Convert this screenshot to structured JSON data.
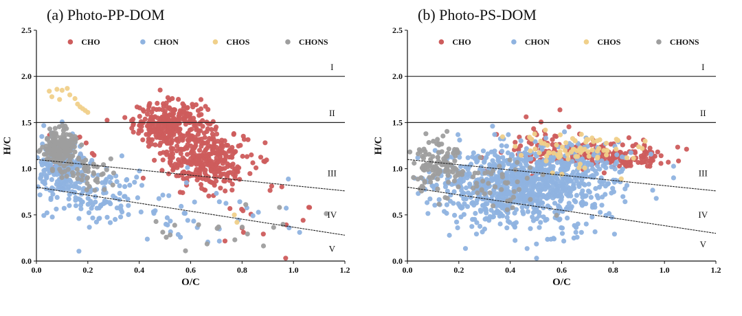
{
  "chart_data": [
    {
      "type": "scatter",
      "title": "(a) Photo-PP-DOM",
      "xlabel": "O/C",
      "ylabel": "H/C",
      "xlim": [
        0,
        1.2
      ],
      "ylim": [
        0,
        2.5
      ],
      "xticks": [
        "0.0",
        "0.2",
        "0.4",
        "0.6",
        "0.8",
        "1.0",
        "1.2"
      ],
      "yticks": [
        "0.0",
        "0.5",
        "1.0",
        "1.5",
        "2.0",
        "2.5"
      ],
      "legend_position": "top",
      "series": [
        {
          "name": "CHO",
          "color": "#cd5c5c",
          "clusters": [
            {
              "cx": 0.52,
              "cy": 1.48,
              "rx": 0.14,
              "ry": 0.25,
              "n": 300
            },
            {
              "cx": 0.66,
              "cy": 1.1,
              "rx": 0.17,
              "ry": 0.32,
              "n": 320
            },
            {
              "cx": 0.14,
              "cy": 1.2,
              "rx": 0.1,
              "ry": 0.22,
              "n": 25
            },
            {
              "cx": 0.9,
              "cy": 0.5,
              "rx": 0.3,
              "ry": 0.45,
              "n": 14
            }
          ]
        },
        {
          "name": "CHON",
          "color": "#8fb3e0",
          "clusters": [
            {
              "cx": 0.1,
              "cy": 1.0,
              "rx": 0.09,
              "ry": 0.32,
              "n": 240
            },
            {
              "cx": 0.25,
              "cy": 0.7,
              "rx": 0.2,
              "ry": 0.3,
              "n": 100
            },
            {
              "cx": 0.6,
              "cy": 0.55,
              "rx": 0.45,
              "ry": 0.45,
              "n": 45
            }
          ]
        },
        {
          "name": "CHOS",
          "color": "#f0d08a",
          "points": [
            [
              0.05,
              1.84
            ],
            [
              0.08,
              1.86
            ],
            [
              0.1,
              1.85
            ],
            [
              0.12,
              1.87
            ],
            [
              0.13,
              1.8
            ],
            [
              0.15,
              1.76
            ],
            [
              0.16,
              1.7
            ],
            [
              0.17,
              1.67
            ],
            [
              0.18,
              1.65
            ],
            [
              0.19,
              1.63
            ],
            [
              0.2,
              1.61
            ],
            [
              0.77,
              0.5
            ],
            [
              0.78,
              0.42
            ],
            [
              0.09,
              1.75
            ],
            [
              0.06,
              1.78
            ]
          ]
        },
        {
          "name": "CHONS",
          "color": "#9e9e9e",
          "clusters": [
            {
              "cx": 0.09,
              "cy": 1.22,
              "rx": 0.07,
              "ry": 0.22,
              "n": 170
            },
            {
              "cx": 0.22,
              "cy": 0.95,
              "rx": 0.1,
              "ry": 0.2,
              "n": 40
            },
            {
              "cx": 0.75,
              "cy": 0.35,
              "rx": 0.35,
              "ry": 0.25,
              "n": 20
            }
          ]
        }
      ],
      "reference_lines": [
        {
          "label": "I",
          "from": [
            0,
            2.0
          ],
          "to": [
            1.2,
            2.0
          ],
          "style": "solid"
        },
        {
          "label": "II",
          "from": [
            0,
            1.5
          ],
          "to": [
            1.2,
            1.5
          ],
          "style": "solid"
        },
        {
          "label": "III",
          "from": [
            0,
            1.1
          ],
          "to": [
            1.2,
            0.76
          ],
          "style": "dashed"
        },
        {
          "label": "IV",
          "from": [
            0,
            0.8
          ],
          "to": [
            1.2,
            0.28
          ],
          "style": "dashed"
        },
        {
          "label": "V",
          "from": null,
          "to": null,
          "style": "none"
        }
      ],
      "region_labels": [
        {
          "text": "I",
          "x": 1.15,
          "y": 2.1
        },
        {
          "text": "II",
          "x": 1.15,
          "y": 1.6
        },
        {
          "text": "III",
          "x": 1.15,
          "y": 0.95
        },
        {
          "text": "IV",
          "x": 1.15,
          "y": 0.5
        },
        {
          "text": "V",
          "x": 1.15,
          "y": 0.13
        }
      ]
    },
    {
      "type": "scatter",
      "title": "(b) Photo-PS-DOM",
      "xlabel": "O/C",
      "ylabel": "H/C",
      "xlim": [
        0,
        1.2
      ],
      "ylim": [
        0,
        2.5
      ],
      "xticks": [
        "0.0",
        "0.2",
        "0.4",
        "0.6",
        "0.8",
        "1.0",
        "1.2"
      ],
      "yticks": [
        "0.0",
        "0.5",
        "1.0",
        "1.5",
        "2.0",
        "2.5"
      ],
      "legend_position": "top",
      "series": [
        {
          "name": "CHO",
          "color": "#cd5c5c",
          "clusters": [
            {
              "cx": 0.72,
              "cy": 1.15,
              "rx": 0.26,
              "ry": 0.15,
              "n": 170
            },
            {
              "cx": 0.5,
              "cy": 1.3,
              "rx": 0.15,
              "ry": 0.25,
              "n": 45
            },
            {
              "cx": 0.9,
              "cy": 1.1,
              "rx": 0.15,
              "ry": 0.1,
              "n": 30
            }
          ]
        },
        {
          "name": "CHON",
          "color": "#8fb3e0",
          "clusters": [
            {
              "cx": 0.4,
              "cy": 0.8,
              "rx": 0.3,
              "ry": 0.42,
              "n": 750
            },
            {
              "cx": 0.62,
              "cy": 0.9,
              "rx": 0.3,
              "ry": 0.35,
              "n": 260
            },
            {
              "cx": 0.65,
              "cy": 0.3,
              "rx": 0.12,
              "ry": 0.1,
              "n": 12
            }
          ]
        },
        {
          "name": "CHOS",
          "color": "#f0d08a",
          "clusters": [
            {
              "cx": 0.65,
              "cy": 1.2,
              "rx": 0.25,
              "ry": 0.2,
              "n": 80
            }
          ]
        },
        {
          "name": "CHONS",
          "color": "#9e9e9e",
          "clusters": [
            {
              "cx": 0.11,
              "cy": 1.05,
              "rx": 0.09,
              "ry": 0.28,
              "n": 110
            },
            {
              "cx": 0.35,
              "cy": 0.85,
              "rx": 0.2,
              "ry": 0.3,
              "n": 50
            }
          ]
        }
      ],
      "reference_lines": [
        {
          "label": "I",
          "from": [
            0,
            2.0
          ],
          "to": [
            1.2,
            2.0
          ],
          "style": "solid"
        },
        {
          "label": "II",
          "from": [
            0,
            1.5
          ],
          "to": [
            1.2,
            1.5
          ],
          "style": "solid"
        },
        {
          "label": "III",
          "from": [
            0,
            1.1
          ],
          "to": [
            1.2,
            0.76
          ],
          "style": "dashed"
        },
        {
          "label": "IV",
          "from": [
            0,
            0.8
          ],
          "to": [
            1.2,
            0.3
          ],
          "style": "dashed"
        }
      ],
      "region_labels": [
        {
          "text": "I",
          "x": 1.15,
          "y": 2.1
        },
        {
          "text": "II",
          "x": 1.15,
          "y": 1.6
        },
        {
          "text": "III",
          "x": 1.15,
          "y": 0.95
        },
        {
          "text": "IV",
          "x": 1.15,
          "y": 0.5
        },
        {
          "text": "V",
          "x": 1.15,
          "y": 0.18
        }
      ]
    }
  ]
}
